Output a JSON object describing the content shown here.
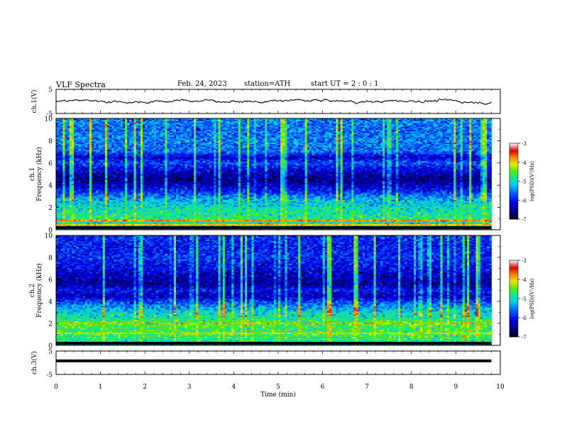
{
  "header": {
    "title": "VLF  Spectra",
    "date": "Feb. 24, 2023",
    "station": "station=ATH",
    "start_ut": "start  UT  =    2  : 0   : 1"
  },
  "chart_data": [
    {
      "type": "line",
      "ylabel": "ch.1(V)",
      "ylim": [
        -5,
        5
      ],
      "yticks": [
        "5",
        "-5"
      ],
      "xlim": [
        0,
        10
      ],
      "baseline": 0.1,
      "noise_amplitude": 0.5,
      "data_end_min": 9.8,
      "color": "#000000"
    },
    {
      "type": "heatmap",
      "ylabel": "ch.1",
      "ylabel2": "Frequency  (kHz)",
      "ylim": [
        0,
        10
      ],
      "yticks": [
        "0",
        "2",
        "4",
        "6",
        "8",
        "10"
      ],
      "xlim": [
        0,
        10
      ],
      "data_end_min": 9.8,
      "colorbar": {
        "label": "log(PSD)(V²/Hz)",
        "ticks": [
          "-3",
          "-4",
          "-5",
          "-6",
          "-7"
        ],
        "range": [
          -7,
          -3
        ]
      },
      "frequency_profile_khz": [
        0,
        0.5,
        1.0,
        1.5,
        2.0,
        2.5,
        3.0,
        3.5,
        4.0,
        4.5,
        5.0,
        5.5,
        6.0,
        6.5,
        7.0,
        8.0,
        9.0,
        10.0
      ],
      "log_psd_profile": [
        -5.4,
        -5.0,
        -4.8,
        -4.9,
        -5.0,
        -5.2,
        -5.5,
        -6.0,
        -6.3,
        -6.6,
        -6.4,
        -6.1,
        -5.7,
        -6.3,
        -5.6,
        -5.5,
        -5.6,
        -5.5
      ],
      "tone_lines": [
        {
          "f": 0.5,
          "v": -4.0
        },
        {
          "f": 0.85,
          "v": -3.8
        }
      ]
    },
    {
      "type": "heatmap",
      "ylabel": "ch.2",
      "ylabel2": "Frequency  (kHz)",
      "ylim": [
        0,
        10
      ],
      "yticks": [
        "0",
        "2",
        "4",
        "6",
        "8",
        "10"
      ],
      "xlim": [
        0,
        10
      ],
      "data_end_min": 9.8,
      "colorbar": {
        "label": "log(PSD)(V²/Hz)",
        "ticks": [
          "-3",
          "-4",
          "-5",
          "-6",
          "-7"
        ],
        "range": [
          -7,
          -3
        ]
      },
      "frequency_profile_khz": [
        0,
        0.5,
        1.0,
        1.5,
        2.0,
        2.5,
        3.0,
        3.5,
        4.0,
        4.5,
        5.0,
        5.5,
        6.0,
        6.5,
        7.0,
        8.0,
        9.0,
        10.0
      ],
      "log_psd_profile": [
        -5.2,
        -4.8,
        -4.6,
        -4.7,
        -4.5,
        -4.9,
        -5.1,
        -5.4,
        -5.8,
        -6.4,
        -6.0,
        -6.5,
        -6.4,
        -6.3,
        -6.1,
        -5.9,
        -6.0,
        -5.9
      ],
      "tone_lines": [
        {
          "f": 2.0,
          "v": -3.9
        },
        {
          "f": 1.05,
          "v": -4.2
        }
      ]
    },
    {
      "type": "line",
      "ylabel": "ch.3(V)",
      "ylim": [
        -5,
        5
      ],
      "yticks": [
        "5",
        "-5"
      ],
      "xlim": [
        0,
        10
      ],
      "baseline": 0.8,
      "noise_amplitude": 0.0,
      "data_end_min": 9.8,
      "color": "#000000"
    }
  ],
  "xaxis": {
    "label": "Time  (min)",
    "ticks": [
      "0",
      "1",
      "2",
      "3",
      "4",
      "5",
      "6",
      "7",
      "8",
      "9",
      "10"
    ],
    "range": [
      0,
      10
    ]
  }
}
